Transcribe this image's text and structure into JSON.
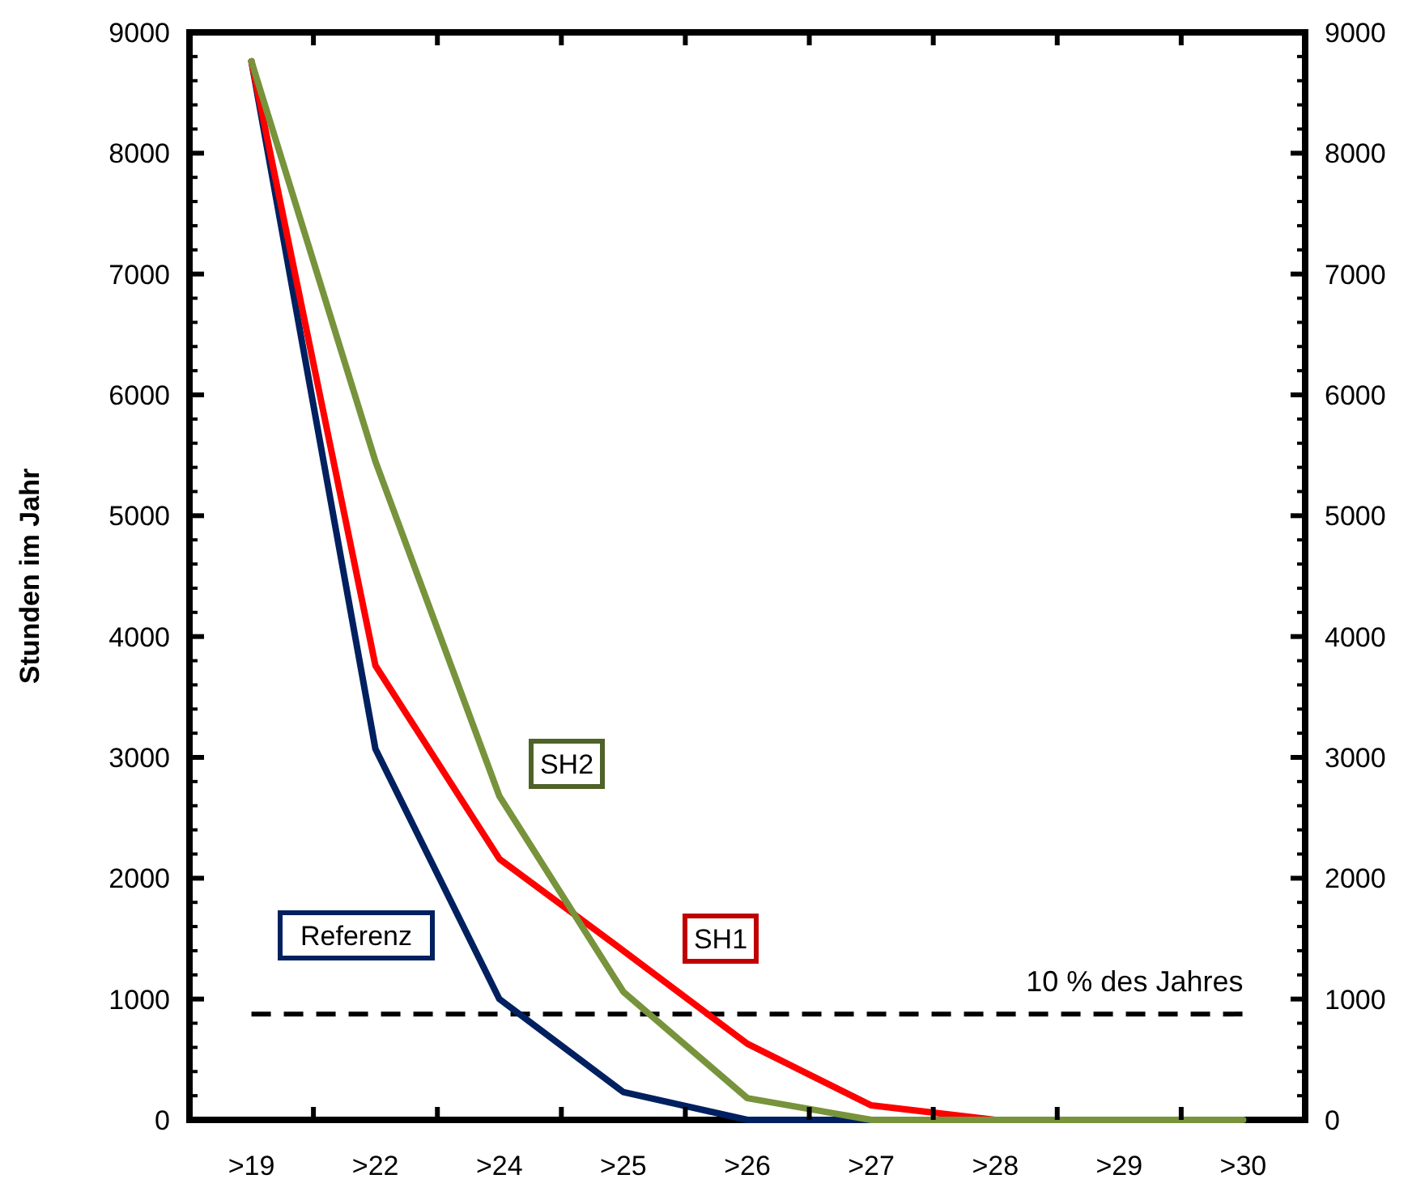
{
  "chart_data": {
    "type": "line",
    "ylabel": "Stunden im Jahr",
    "categories": [
      ">19",
      ">22",
      ">24",
      ">25",
      ">26",
      ">27",
      ">28",
      ">29",
      ">30"
    ],
    "series": [
      {
        "name": "Referenz",
        "color": "#002060",
        "values": [
          8760,
          3070,
          1000,
          230,
          0,
          0,
          null,
          null,
          null
        ]
      },
      {
        "name": "SH1",
        "color": "#ff0000",
        "values": [
          8760,
          3760,
          2160,
          1400,
          630,
          120,
          0,
          null,
          null
        ]
      },
      {
        "name": "SH2",
        "color": "#77933c",
        "values": [
          8760,
          5450,
          2680,
          1060,
          180,
          0,
          0,
          0,
          0
        ]
      }
    ],
    "ylim": [
      0,
      9000
    ],
    "yticks": [
      0,
      1000,
      2000,
      3000,
      4000,
      5000,
      6000,
      7000,
      8000,
      9000
    ],
    "y2lim": [
      0,
      9000
    ],
    "y2ticks": [
      0,
      1000,
      2000,
      3000,
      4000,
      5000,
      6000,
      7000,
      8000,
      9000
    ],
    "ref_lines": [
      {
        "axis": "y",
        "value": 876,
        "label": "10 % des Jahres",
        "color": "#000000",
        "line_style": "dashed"
      }
    ],
    "marker": "none",
    "line_style": "solid",
    "grid": false
  }
}
